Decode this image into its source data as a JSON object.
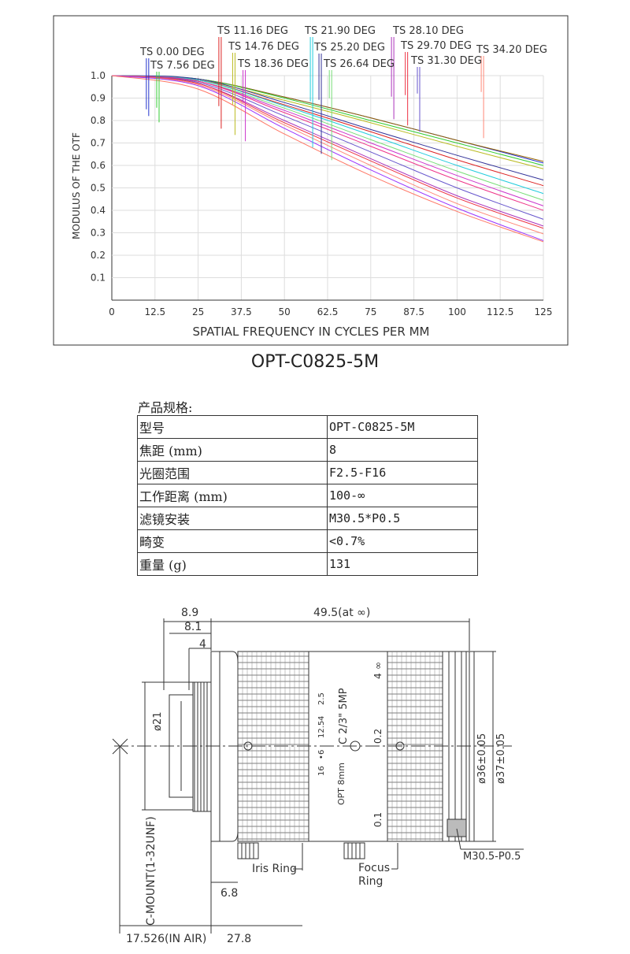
{
  "chart_data": {
    "type": "line",
    "xlabel": "SPATIAL  FREQUENCY  IN  CYCLES  PER  MM",
    "ylabel": "MODULUS  OF  THE  OTF",
    "xlim": [
      0,
      125
    ],
    "ylim": [
      0,
      1.0
    ],
    "x_ticks": [
      "0",
      "12.5",
      "25",
      "37.5",
      "50",
      "62.5",
      "75",
      "87.5",
      "100",
      "112.5",
      "125"
    ],
    "y_ticks": [
      "0.1",
      "0.2",
      "0.3",
      "0.4",
      "0.5",
      "0.6",
      "0.7",
      "0.8",
      "0.9",
      "1.0"
    ],
    "grid": true,
    "field_labels": [
      {
        "text": "TS 0.00  DEG",
        "color": "#2233cc",
        "marker_x": 10.0
      },
      {
        "text": "TS 7.56  DEG",
        "color": "#33cc33",
        "marker_x": 13.0
      },
      {
        "text": "TS 11.16  DEG",
        "color": "#dd2222",
        "marker_x": 31.0
      },
      {
        "text": "TS 14.76  DEG",
        "color": "#bbbb22",
        "marker_x": 35.0
      },
      {
        "text": "TS 18.36  DEG",
        "color": "#cc33cc",
        "marker_x": 38.0
      },
      {
        "text": "TS  21.90  DEG",
        "color": "#22ccdd",
        "marker_x": 57.5
      },
      {
        "text": "TS  25.20  DEG",
        "color": "#333399",
        "marker_x": 60.0
      },
      {
        "text": "TS  26.64  DEG",
        "color": "#77dd77",
        "marker_x": 63.0
      },
      {
        "text": "TS 28.10  DEG",
        "color": "#aa33bb",
        "marker_x": 81.0
      },
      {
        "text": "TS 29.70  DEG",
        "color": "#ee3344",
        "marker_x": 85.0
      },
      {
        "text": "TS 31.30  DEG",
        "color": "#6655cc",
        "marker_x": 88.5
      },
      {
        "text": "TS 34.20  DEG",
        "color": "#ff8877",
        "marker_x": 107.0
      }
    ],
    "series": [
      {
        "color": "#2233cc",
        "values": [
          1.0,
          0.985,
          0.905,
          0.812,
          0.712,
          0.611
        ]
      },
      {
        "color": "#996600",
        "values": [
          1.0,
          0.985,
          0.905,
          0.812,
          0.712,
          0.618
        ]
      },
      {
        "color": "#33cc33",
        "values": [
          1.0,
          0.985,
          0.9,
          0.8,
          0.7,
          0.6
        ]
      },
      {
        "color": "#bbbb22",
        "values": [
          1.0,
          0.98,
          0.89,
          0.79,
          0.685,
          0.585
        ]
      },
      {
        "color": "#333399",
        "values": [
          1.0,
          0.985,
          0.88,
          0.76,
          0.645,
          0.535
        ]
      },
      {
        "color": "#dd2222",
        "values": [
          1.0,
          0.98,
          0.87,
          0.75,
          0.625,
          0.51
        ]
      },
      {
        "color": "#22ccdd",
        "values": [
          1.0,
          0.98,
          0.865,
          0.735,
          0.6,
          0.475
        ]
      },
      {
        "color": "#77dd77",
        "values": [
          1.0,
          0.975,
          0.855,
          0.715,
          0.575,
          0.445
        ]
      },
      {
        "color": "#cc33cc",
        "values": [
          1.0,
          0.975,
          0.845,
          0.7,
          0.555,
          0.42
        ]
      },
      {
        "color": "#ee3388",
        "values": [
          1.0,
          0.975,
          0.835,
          0.685,
          0.535,
          0.4
        ]
      },
      {
        "color": "#6655cc",
        "values": [
          1.0,
          0.97,
          0.82,
          0.66,
          0.5,
          0.36
        ]
      },
      {
        "color": "#aa33bb",
        "values": [
          1.0,
          0.965,
          0.8,
          0.63,
          0.465,
          0.33
        ]
      },
      {
        "color": "#ee3344",
        "values": [
          1.0,
          0.965,
          0.79,
          0.62,
          0.455,
          0.32
        ]
      },
      {
        "color": "#ff8877",
        "values": [
          1.0,
          0.96,
          0.78,
          0.6,
          0.43,
          0.295
        ]
      },
      {
        "color": "#9933ff",
        "values": [
          1.0,
          0.955,
          0.765,
          0.58,
          0.41,
          0.265
        ]
      },
      {
        "color": "#ff7766",
        "values": [
          1.0,
          0.94,
          0.74,
          0.555,
          0.395,
          0.26
        ]
      }
    ],
    "x": [
      0,
      25,
      50,
      75,
      100,
      125
    ]
  },
  "mtf_title": "OPT-C0825-5M",
  "specs": {
    "caption": "产品规格:",
    "rows": [
      {
        "key": " 型号",
        "value": "OPT-C0825-5M"
      },
      {
        "key": "焦距 (mm)",
        "value": "8"
      },
      {
        "key": "光圈范围",
        "value": "F2.5-F16"
      },
      {
        "key": "工作距离 (mm)",
        "value": "100-∞"
      },
      {
        "key": "滤镜安装",
        "value": "M30.5*P0.5"
      },
      {
        "key": "畸变",
        "value": "<0.7%"
      },
      {
        "key": "重量 (g)",
        "value": "131"
      }
    ]
  },
  "drawing": {
    "dim_89": "8.9",
    "dim_81": "8.1",
    "dim_4": "4",
    "dim_495": "49.5(at ∞)",
    "dim_21": "ø21",
    "dim_36": "ø36±0.05",
    "dim_37": "ø37±0.05",
    "thread": "M30.5-P0.5",
    "iris_ring": "Iris Ring",
    "focus_ring_1": "Focus",
    "focus_ring_2": "Ring",
    "dim_68": "6.8",
    "cmount": "C-MOUNT(1-32UNF)",
    "dim_17526": "17.526(IN AIR)",
    "dim_278": "27.8",
    "barrel_opt": "OPT 8mm",
    "barrel_model": "C 2/3\"  5MP",
    "aperture_scale": [
      "16",
      "•",
      "6",
      "12.5",
      "4",
      "2.5"
    ],
    "focus_scale": [
      "0.1",
      "0.2",
      "4",
      "∞"
    ]
  }
}
